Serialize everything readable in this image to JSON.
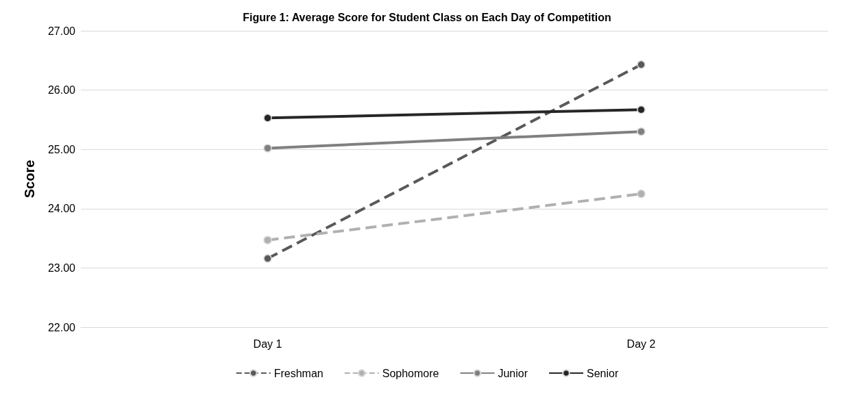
{
  "chart_data": {
    "type": "line",
    "title": "Figure 1: Average Score for Student Class on Each Day of Competition",
    "ylabel": "Score",
    "categories": [
      "Day 1",
      "Day 2"
    ],
    "series": [
      {
        "name": "Freshman",
        "color": "#595959",
        "values": [
          23.16,
          26.43
        ],
        "line_style": "dashed"
      },
      {
        "name": "Sophomore",
        "color": "#b0b0b0",
        "values": [
          23.47,
          24.25
        ],
        "line_style": "dashed"
      },
      {
        "name": "Junior",
        "color": "#808080",
        "values": [
          25.02,
          25.3
        ],
        "line_style": "solid"
      },
      {
        "name": "Senior",
        "color": "#262626",
        "values": [
          25.53,
          25.67
        ],
        "line_style": "solid"
      }
    ],
    "ylim": [
      22,
      27
    ],
    "yticks": [
      {
        "value": 22,
        "label": "22.00"
      },
      {
        "value": 23,
        "label": "23.00"
      },
      {
        "value": 24,
        "label": "24.00"
      },
      {
        "value": 25,
        "label": "25.00"
      },
      {
        "value": 26,
        "label": "26.00"
      },
      {
        "value": 27,
        "label": "27.00"
      }
    ],
    "grid": "y",
    "legend": "bottom",
    "marker": "circle"
  }
}
